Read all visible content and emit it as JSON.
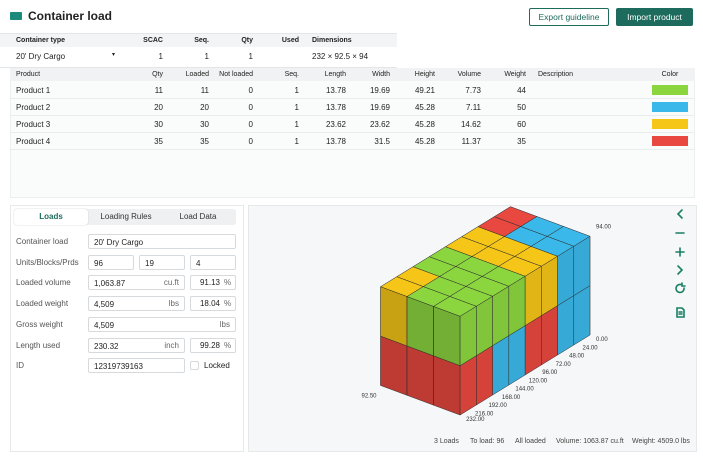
{
  "header": {
    "title": "Container load",
    "export_button": "Export guideline",
    "import_button": "Import product"
  },
  "container_table": {
    "headers": [
      "Container type",
      "SCAC",
      "Seq.",
      "Qty",
      "Used",
      "Dimensions"
    ],
    "row": {
      "type": "20' Dry Cargo",
      "seq": 1,
      "qty": 1,
      "used": 1,
      "dimensions": "232 × 92.5 × 94"
    }
  },
  "products_table": {
    "headers": [
      "Product",
      "Qty",
      "Loaded",
      "Not loaded",
      "Seq.",
      "Length",
      "Width",
      "Height",
      "Volume",
      "Weight",
      "Description",
      "Color"
    ],
    "rows": [
      {
        "name": "Product 1",
        "values": [
          11,
          11,
          0,
          1,
          13.78,
          19.69,
          49.21,
          7.73,
          44
        ],
        "color": "#8bd63f"
      },
      {
        "name": "Product 2",
        "values": [
          20,
          20,
          0,
          1,
          13.78,
          19.69,
          45.28,
          7.11,
          50
        ],
        "color": "#3bb8ea"
      },
      {
        "name": "Product 3",
        "values": [
          30,
          30,
          0,
          1,
          23.62,
          23.62,
          45.28,
          14.62,
          60
        ],
        "color": "#f5c518"
      },
      {
        "name": "Product 4",
        "values": [
          35,
          35,
          0,
          1,
          13.78,
          31.5,
          45.28,
          11.37,
          35
        ],
        "color": "#e8483f"
      }
    ]
  },
  "tabs": [
    "Loads",
    "Loading Rules",
    "Load Data"
  ],
  "form": {
    "rows": [
      {
        "label": "Container load",
        "value": "20' Dry Cargo"
      },
      {
        "label": "Units/Blocks/Prds",
        "values": [
          96,
          19,
          4
        ]
      },
      {
        "label": "Loaded volume",
        "value": "1,063.87",
        "unit": "cu.ft",
        "percent": 91.13,
        "percent_unit": "%"
      },
      {
        "label": "Loaded weight",
        "value": "4,509",
        "unit": "lbs",
        "percent": 18.04,
        "percent_unit": "%"
      },
      {
        "label": "Gross weight",
        "value": "4,509",
        "unit": "lbs"
      },
      {
        "label": "Length used",
        "value": 230.32,
        "unit": "inch",
        "percent": 99.28,
        "percent_unit": "%"
      },
      {
        "label": "ID",
        "value": "12319739163",
        "checkbox_label": "Locked"
      }
    ]
  },
  "viewer": {
    "length_labels": [
      {
        "value": 0,
        "label": "0.00"
      },
      {
        "value": 24,
        "label": "24.00"
      },
      {
        "value": 48,
        "label": "48.00"
      },
      {
        "value": 72,
        "label": "72.00"
      },
      {
        "value": 96,
        "label": "96.00"
      },
      {
        "value": 120,
        "label": "120.00"
      },
      {
        "value": 144,
        "label": "144.00"
      },
      {
        "value": 168,
        "label": "168.00"
      },
      {
        "value": 192,
        "label": "192.00"
      },
      {
        "value": 216,
        "label": "216.00"
      },
      {
        "value": 232,
        "label": "232.00"
      }
    ],
    "width_label": {
      "value": 92.5,
      "label": "92.50"
    },
    "height_label": {
      "value": 94,
      "label": "94.00"
    }
  },
  "status_bar": [
    "3 Loads",
    "To load: 96",
    "All loaded",
    "Volume: 1063.87 cu.ft",
    "Weight: 4509.0 lbs"
  ]
}
